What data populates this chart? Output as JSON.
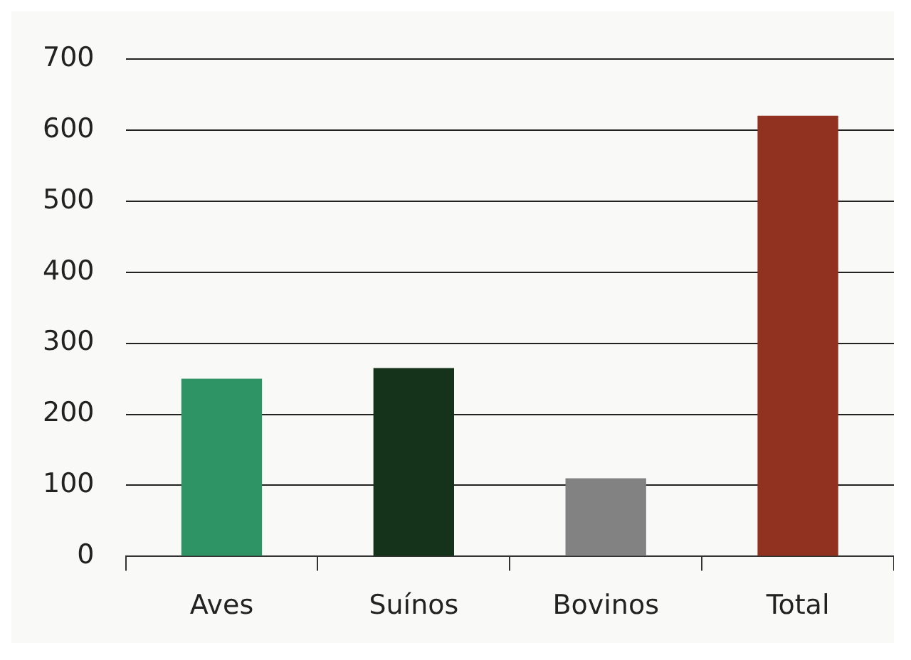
{
  "chart_data": {
    "type": "bar",
    "categories": [
      "Aves",
      "Suínos",
      "Bovinos",
      "Total"
    ],
    "values": [
      250,
      265,
      110,
      620
    ],
    "colors": [
      "#2e9465",
      "#15321a",
      "#828282",
      "#90321f"
    ],
    "ylim": [
      0,
      700
    ],
    "yticks": [
      0,
      100,
      200,
      300,
      400,
      500,
      600,
      700
    ],
    "grid": "y",
    "legend": false
  }
}
